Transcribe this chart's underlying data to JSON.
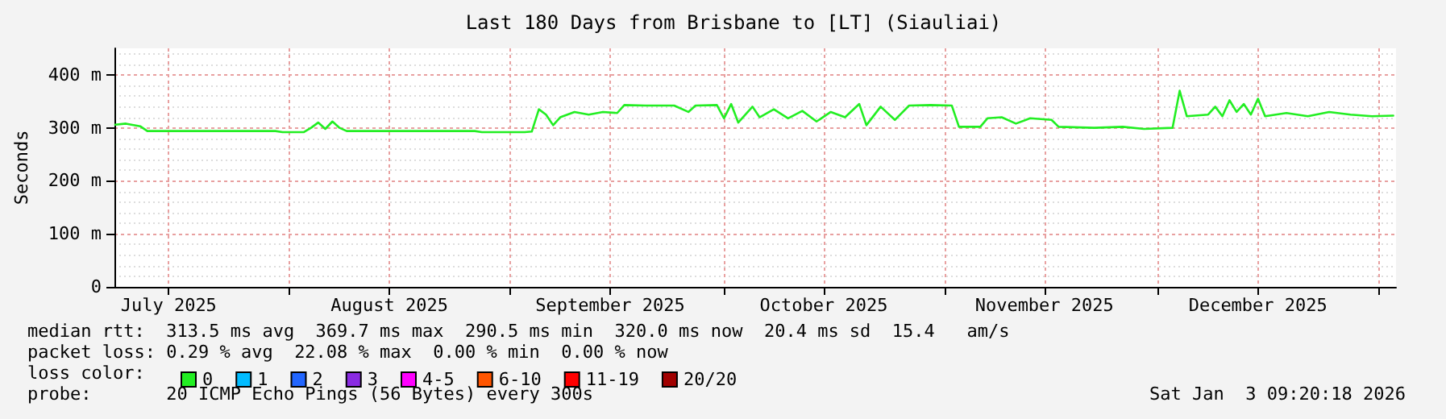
{
  "chart_data": {
    "type": "line",
    "title": "Last 180 Days from Brisbane to [LT] (Siauliai)",
    "ylabel": "Seconds",
    "x": [
      "2025-07-07T12:00",
      "2025-07-09",
      "2025-07-11",
      "2025-07-12",
      "2025-07-20",
      "2025-07-30",
      "2025-07-31",
      "2025-08-03",
      "2025-08-04",
      "2025-08-05",
      "2025-08-06",
      "2025-08-07",
      "2025-08-08",
      "2025-08-09",
      "2025-08-18",
      "2025-08-27",
      "2025-08-28",
      "2025-09-03",
      "2025-09-04",
      "2025-09-05",
      "2025-09-06",
      "2025-09-07",
      "2025-09-08",
      "2025-09-10",
      "2025-09-12",
      "2025-09-14",
      "2025-09-16",
      "2025-09-17",
      "2025-09-20",
      "2025-09-24",
      "2025-09-26",
      "2025-09-27",
      "2025-09-30",
      "2025-10-01",
      "2025-10-02",
      "2025-10-03",
      "2025-10-05",
      "2025-10-06",
      "2025-10-08",
      "2025-10-10",
      "2025-10-12",
      "2025-10-14",
      "2025-10-16",
      "2025-10-18",
      "2025-10-20",
      "2025-10-21",
      "2025-10-23",
      "2025-10-25",
      "2025-10-27",
      "2025-10-30",
      "2025-11-02",
      "2025-11-03",
      "2025-11-06",
      "2025-11-07",
      "2025-11-09",
      "2025-11-11",
      "2025-11-13",
      "2025-11-16",
      "2025-11-17",
      "2025-11-22",
      "2025-11-26",
      "2025-11-29",
      "2025-12-03",
      "2025-12-04",
      "2025-12-05",
      "2025-12-08",
      "2025-12-09",
      "2025-12-10",
      "2025-12-11",
      "2025-12-12",
      "2025-12-13",
      "2025-12-14",
      "2025-12-15",
      "2025-12-16",
      "2025-12-19",
      "2025-12-22",
      "2025-12-25",
      "2025-12-28",
      "2025-12-31",
      "2026-01-03"
    ],
    "series": [
      {
        "name": "0",
        "color": "#22ee22",
        "values": [
          306,
          308,
          303,
          294,
          294,
          294,
          292,
          292,
          300,
          310,
          298,
          312,
          300,
          294,
          294,
          294,
          292,
          292,
          293,
          335,
          325,
          305,
          320,
          330,
          325,
          330,
          328,
          343,
          342,
          342,
          330,
          342,
          343,
          318,
          345,
          310,
          340,
          320,
          335,
          318,
          332,
          312,
          330,
          320,
          345,
          305,
          340,
          315,
          342,
          343,
          342,
          302,
          302,
          318,
          320,
          308,
          318,
          315,
          302,
          300,
          302,
          298,
          300,
          370,
          322,
          325,
          340,
          322,
          352,
          330,
          345,
          325,
          355,
          322,
          328,
          322,
          330,
          325,
          322,
          323
        ]
      },
      {
        "name": "1",
        "color": "#00bbff",
        "values": [
          null,
          null,
          null,
          null,
          null,
          null,
          null,
          null,
          null,
          null,
          null,
          null,
          null,
          null,
          null,
          null,
          null,
          null,
          null,
          null,
          null,
          null,
          null,
          null,
          null,
          null,
          null,
          null,
          null,
          null,
          null,
          null,
          null,
          null,
          null,
          null,
          null,
          null,
          null,
          null,
          null,
          null,
          null,
          null,
          null,
          null,
          null,
          null,
          null,
          null,
          null,
          null,
          null,
          null,
          null,
          null,
          null,
          null,
          null,
          null,
          null,
          null,
          null,
          null,
          null,
          null,
          null,
          null,
          null,
          null,
          null,
          null,
          null,
          null,
          null,
          null,
          null,
          null,
          null,
          null
        ]
      },
      {
        "name": "2",
        "color": "#2266ff",
        "values": [
          null,
          null,
          null,
          null,
          null,
          null,
          null,
          null,
          null,
          null,
          null,
          null,
          null,
          null,
          null,
          null,
          null,
          null,
          null,
          null,
          null,
          null,
          null,
          null,
          null,
          null,
          null,
          null,
          null,
          null,
          null,
          null,
          null,
          null,
          null,
          null,
          null,
          null,
          null,
          null,
          null,
          null,
          null,
          null,
          null,
          null,
          null,
          null,
          null,
          null,
          null,
          null,
          null,
          null,
          null,
          null,
          null,
          null,
          null,
          null,
          null,
          null,
          null,
          null,
          null,
          null,
          null,
          null,
          null,
          null,
          null,
          null,
          null,
          null,
          null,
          null,
          null,
          null,
          null,
          null
        ]
      },
      {
        "name": "3",
        "color": "#8a2be2",
        "values": [
          null,
          null,
          null,
          null,
          null,
          null,
          null,
          null,
          null,
          null,
          null,
          null,
          null,
          null,
          null,
          null,
          null,
          null,
          null,
          null,
          null,
          null,
          null,
          null,
          null,
          null,
          null,
          null,
          null,
          null,
          null,
          null,
          null,
          null,
          null,
          null,
          null,
          null,
          null,
          null,
          null,
          null,
          null,
          null,
          null,
          null,
          null,
          null,
          null,
          null,
          null,
          null,
          null,
          null,
          null,
          null,
          null,
          null,
          null,
          null,
          null,
          null,
          null,
          null,
          null,
          null,
          null,
          null,
          null,
          null,
          null,
          null,
          null,
          null,
          null,
          null,
          null,
          null,
          null,
          null
        ]
      },
      {
        "name": "4-5",
        "color": "#ff00ff",
        "values": [
          null,
          null,
          null,
          null,
          null,
          null,
          null,
          null,
          null,
          null,
          null,
          null,
          null,
          null,
          null,
          null,
          null,
          null,
          null,
          null,
          null,
          null,
          null,
          null,
          null,
          null,
          null,
          null,
          null,
          null,
          null,
          null,
          null,
          null,
          null,
          null,
          null,
          null,
          null,
          null,
          null,
          null,
          null,
          null,
          null,
          null,
          null,
          null,
          null,
          null,
          null,
          null,
          null,
          null,
          null,
          null,
          null,
          null,
          null,
          null,
          null,
          null,
          null,
          null,
          null,
          null,
          null,
          null,
          null,
          null,
          null,
          null,
          null,
          null,
          null,
          null,
          null,
          null,
          null,
          null
        ]
      },
      {
        "name": "6-10",
        "color": "#ff5500",
        "values": [
          null,
          null,
          null,
          null,
          null,
          null,
          null,
          null,
          null,
          null,
          null,
          null,
          null,
          null,
          null,
          null,
          null,
          null,
          null,
          null,
          null,
          null,
          null,
          null,
          null,
          null,
          null,
          null,
          null,
          null,
          null,
          null,
          null,
          null,
          null,
          null,
          null,
          null,
          null,
          null,
          null,
          null,
          null,
          null,
          null,
          null,
          null,
          null,
          null,
          null,
          null,
          null,
          null,
          null,
          null,
          null,
          null,
          null,
          null,
          null,
          null,
          null,
          null,
          null,
          null,
          null,
          null,
          null,
          null,
          null,
          null,
          null,
          null,
          null,
          null,
          null,
          null,
          null,
          null,
          null
        ]
      },
      {
        "name": "11-19",
        "color": "#ff0000",
        "values": [
          null,
          null,
          null,
          null,
          null,
          null,
          null,
          null,
          null,
          null,
          null,
          null,
          null,
          null,
          null,
          null,
          null,
          null,
          null,
          null,
          null,
          null,
          null,
          null,
          null,
          null,
          null,
          null,
          null,
          null,
          null,
          null,
          null,
          null,
          null,
          null,
          null,
          null,
          null,
          null,
          null,
          null,
          null,
          null,
          null,
          null,
          null,
          null,
          null,
          null,
          null,
          null,
          null,
          null,
          null,
          null,
          null,
          null,
          null,
          null,
          null,
          null,
          null,
          null,
          null,
          null,
          null,
          null,
          null,
          null,
          null,
          null,
          null,
          null,
          null,
          null,
          null,
          null,
          null,
          null
        ]
      },
      {
        "name": "20/20",
        "color": "#a10000",
        "values": [
          null,
          null,
          null,
          null,
          null,
          null,
          null,
          null,
          null,
          null,
          null,
          null,
          null,
          null,
          null,
          null,
          null,
          null,
          null,
          null,
          null,
          null,
          null,
          null,
          null,
          null,
          null,
          null,
          null,
          null,
          null,
          null,
          null,
          null,
          null,
          null,
          null,
          null,
          null,
          null,
          null,
          null,
          null,
          null,
          null,
          null,
          null,
          null,
          null,
          null,
          null,
          null,
          null,
          null,
          null,
          null,
          null,
          null,
          null,
          null,
          null,
          null,
          null,
          null,
          null,
          null,
          null,
          null,
          null,
          null,
          null,
          null,
          null,
          null,
          null,
          null,
          null,
          null,
          null,
          null
        ]
      }
    ],
    "xlim": [
      "2025-07-07T09:20",
      "2026-01-03T09:20"
    ],
    "xticks": [
      {
        "value": "2025-07-15",
        "label": "July 2025"
      },
      {
        "value": "2025-08-01",
        "label": null
      },
      {
        "value": "2025-08-15",
        "label": "August 2025"
      },
      {
        "value": "2025-09-01",
        "label": null
      },
      {
        "value": "2025-09-15",
        "label": "September 2025"
      },
      {
        "value": "2025-10-01",
        "label": null
      },
      {
        "value": "2025-10-15",
        "label": "October 2025"
      },
      {
        "value": "2025-11-01",
        "label": null
      },
      {
        "value": "2025-11-15",
        "label": "November 2025"
      },
      {
        "value": "2025-12-01",
        "label": null
      },
      {
        "value": "2025-12-15",
        "label": "December 2025"
      },
      {
        "value": "2026-01-01",
        "label": null
      }
    ],
    "ylim": [
      0,
      450
    ],
    "yticks": [
      0,
      {
        "value": 100,
        "label": "100 m"
      },
      {
        "value": 200,
        "label": "200 m"
      },
      {
        "value": 300,
        "label": "300 m"
      },
      {
        "value": 400,
        "label": "400 m"
      }
    ],
    "grid": true,
    "legend": "bottom left",
    "marker": "none",
    "line_style": "solid",
    "annotations": [
      "median rtt:  313.5 ms avg  369.7 ms max  290.5 ms min  320.0 ms now  20.4 ms sd  15.4   am/s",
      "packet loss: 0.29 % avg  22.08 % max  0.00 % min  0.00 % now",
      "loss color:",
      "probe:       20 ICMP Echo Pings (56 Bytes) every 300s",
      "Sat Jan  3 09:20:18 2026"
    ]
  }
}
